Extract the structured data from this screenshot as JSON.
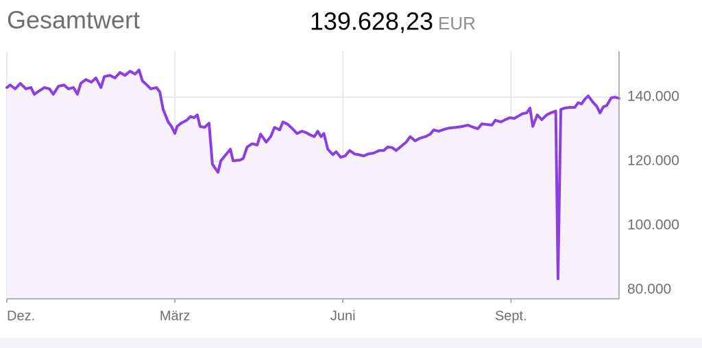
{
  "chart_data": {
    "type": "area",
    "title": "Gesamtwert",
    "total": "139.628,23",
    "currency": "EUR",
    "color": "#8b3fe0",
    "fill": "#f6f1fd",
    "grid": true,
    "y_axis_side": "right",
    "xlim": [
      0,
      10.93
    ],
    "xticks": [
      {
        "value": 0,
        "label": "Dez."
      },
      {
        "value": 3,
        "label": "März"
      },
      {
        "value": 6,
        "label": "Juni"
      },
      {
        "value": 9,
        "label": "Sept."
      }
    ],
    "ylim": [
      77200,
      154300
    ],
    "yticks": [
      {
        "value": 80000,
        "label": "80.000"
      },
      {
        "value": 100000,
        "label": "100.000"
      },
      {
        "value": 120000,
        "label": "120.000"
      },
      {
        "value": 140000,
        "label": "140.000"
      }
    ],
    "x": [
      0,
      0.06,
      0.15,
      0.24,
      0.34,
      0.43,
      0.49,
      0.59,
      0.67,
      0.76,
      0.83,
      0.92,
      1.02,
      1.1,
      1.19,
      1.26,
      1.32,
      1.41,
      1.51,
      1.59,
      1.68,
      1.74,
      1.84,
      1.93,
      2.02,
      2.11,
      2.2,
      2.29,
      2.36,
      2.42,
      2.5,
      2.57,
      2.67,
      2.73,
      2.79,
      2.88,
      2.94,
      3.0,
      3.04,
      3.11,
      3.21,
      3.28,
      3.34,
      3.4,
      3.45,
      3.53,
      3.61,
      3.67,
      3.77,
      3.82,
      3.92,
      3.99,
      4.04,
      4.16,
      4.22,
      4.29,
      4.38,
      4.47,
      4.53,
      4.63,
      4.71,
      4.78,
      4.87,
      4.93,
      5.02,
      5.12,
      5.18,
      5.27,
      5.35,
      5.41,
      5.49,
      5.55,
      5.61,
      5.66,
      5.73,
      5.82,
      5.88,
      5.96,
      6.04,
      6.12,
      6.21,
      6.28,
      6.37,
      6.45,
      6.55,
      6.65,
      6.73,
      6.8,
      6.88,
      6.95,
      7.04,
      7.13,
      7.2,
      7.29,
      7.37,
      7.47,
      7.56,
      7.62,
      7.71,
      7.81,
      7.9,
      8.02,
      8.14,
      8.23,
      8.33,
      8.41,
      8.48,
      8.57,
      8.66,
      8.72,
      8.82,
      8.9,
      8.98,
      9.06,
      9.12,
      9.21,
      9.28,
      9.34,
      9.39,
      9.47,
      9.55,
      9.64,
      9.71,
      9.8,
      9.84,
      9.89,
      9.96,
      10.04,
      10.14,
      10.2,
      10.26,
      10.32,
      10.38,
      10.47,
      10.53,
      10.59,
      10.65,
      10.71,
      10.79,
      10.86,
      10.93
    ],
    "series": [
      {
        "values": [
          143000,
          143800,
          142600,
          144300,
          142600,
          143000,
          140900,
          142100,
          143000,
          142600,
          140900,
          143400,
          143800,
          142600,
          143000,
          140900,
          144300,
          145500,
          144700,
          146000,
          143000,
          146400,
          146800,
          146000,
          147700,
          146800,
          148100,
          147200,
          148500,
          145100,
          143800,
          142600,
          143000,
          141700,
          136200,
          132300,
          130900,
          128700,
          130900,
          131900,
          132800,
          134000,
          133600,
          134500,
          130900,
          130600,
          131900,
          119100,
          116600,
          120200,
          122300,
          123800,
          120200,
          120400,
          120900,
          124500,
          125500,
          125100,
          128500,
          126000,
          127700,
          130600,
          129800,
          132300,
          131500,
          129800,
          128700,
          129400,
          128900,
          128300,
          127700,
          129400,
          127700,
          128700,
          123800,
          122100,
          123000,
          121300,
          121700,
          123400,
          122300,
          122100,
          121700,
          122300,
          122600,
          123400,
          123400,
          124500,
          124300,
          123400,
          124700,
          126000,
          127700,
          126400,
          127200,
          127700,
          128500,
          129800,
          129400,
          130000,
          130400,
          130600,
          130900,
          131300,
          130600,
          130200,
          131700,
          131500,
          131300,
          132800,
          132300,
          133000,
          133600,
          133400,
          134000,
          134900,
          135100,
          136600,
          130900,
          134500,
          133000,
          134500,
          135100,
          135700,
          83400,
          136200,
          136600,
          136800,
          136800,
          138300,
          137900,
          139400,
          140400,
          138300,
          137200,
          135100,
          137000,
          137400,
          139800,
          140000,
          139628
        ]
      }
    ]
  }
}
